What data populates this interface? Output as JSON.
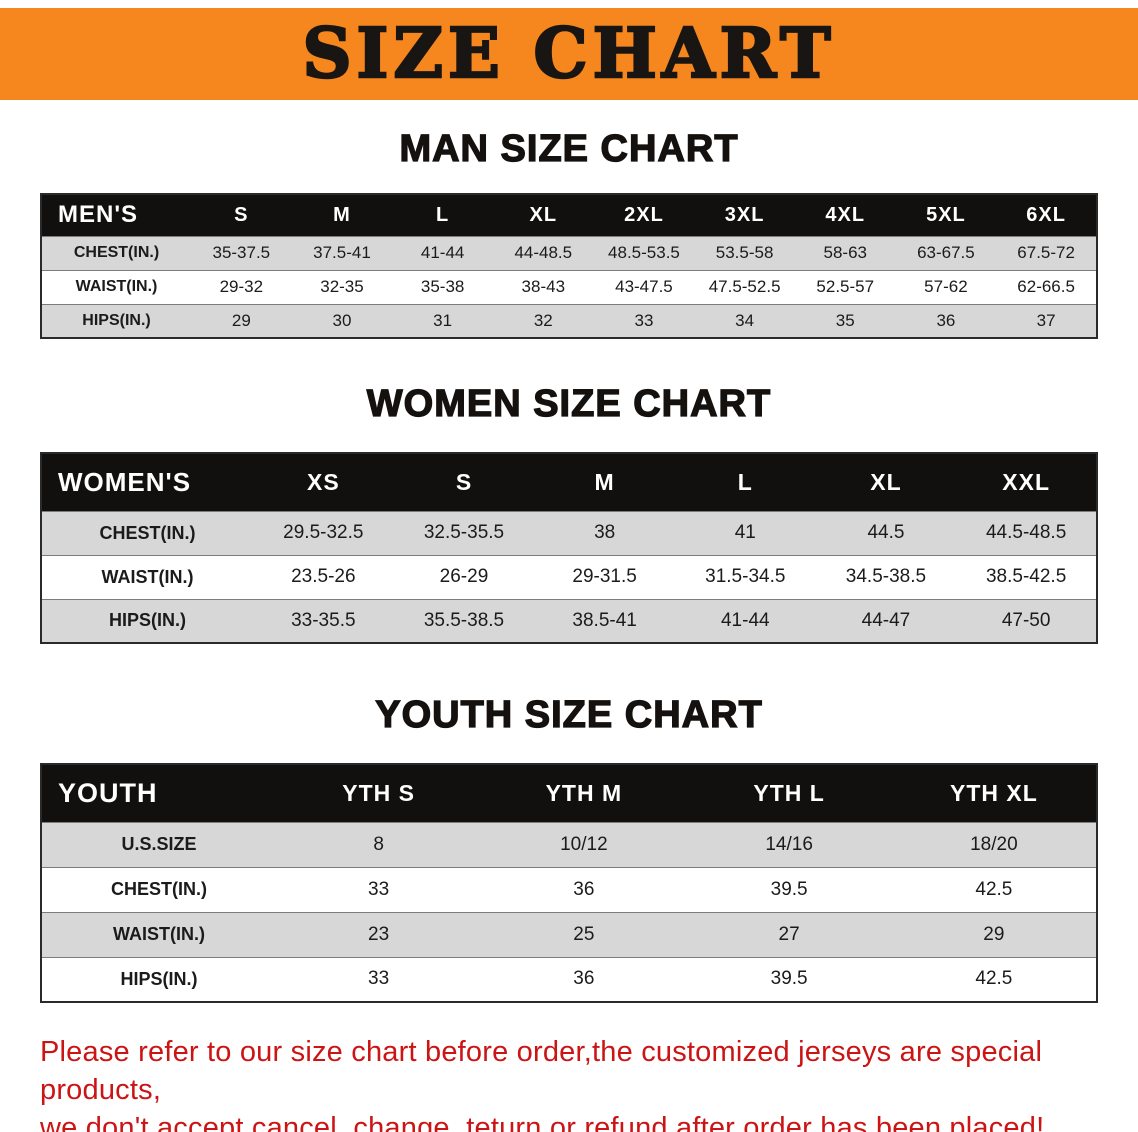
{
  "banner": {
    "title": "SIZE CHART"
  },
  "colors": {
    "banner_bg": "#F6871F",
    "table_header_bg": "#12100E",
    "row_stripe": "#D7D7D7",
    "notice_text": "#CC1414"
  },
  "sections": [
    {
      "id": "men",
      "heading": "MAN SIZE CHART",
      "table": {
        "corner": "MEN'S",
        "columns": [
          "S",
          "M",
          "L",
          "XL",
          "2XL",
          "3XL",
          "4XL",
          "5XL",
          "6XL"
        ],
        "rows": [
          {
            "label": "CHEST(IN.)",
            "values": [
              "35-37.5",
              "37.5-41",
              "41-44",
              "44-48.5",
              "48.5-53.5",
              "53.5-58",
              "58-63",
              "63-67.5",
              "67.5-72"
            ]
          },
          {
            "label": "WAIST(IN.)",
            "values": [
              "29-32",
              "32-35",
              "35-38",
              "38-43",
              "43-47.5",
              "47.5-52.5",
              "52.5-57",
              "57-62",
              "62-66.5"
            ]
          },
          {
            "label": "HIPS(IN.)",
            "values": [
              "29",
              "30",
              "31",
              "32",
              "33",
              "34",
              "35",
              "36",
              "37"
            ]
          }
        ]
      }
    },
    {
      "id": "women",
      "heading": "WOMEN SIZE CHART",
      "table": {
        "corner": "WOMEN'S",
        "columns": [
          "XS",
          "S",
          "M",
          "L",
          "XL",
          "XXL"
        ],
        "rows": [
          {
            "label": "CHEST(IN.)",
            "values": [
              "29.5-32.5",
              "32.5-35.5",
              "38",
              "41",
              "44.5",
              "44.5-48.5"
            ]
          },
          {
            "label": "WAIST(IN.)",
            "values": [
              "23.5-26",
              "26-29",
              "29-31.5",
              "31.5-34.5",
              "34.5-38.5",
              "38.5-42.5"
            ]
          },
          {
            "label": "HIPS(IN.)",
            "values": [
              "33-35.5",
              "35.5-38.5",
              "38.5-41",
              "41-44",
              "44-47",
              "47-50"
            ]
          }
        ]
      }
    },
    {
      "id": "youth",
      "heading": "YOUTH SIZE CHART",
      "table": {
        "corner": "YOUTH",
        "columns": [
          "YTH S",
          "YTH M",
          "YTH L",
          "YTH XL"
        ],
        "rows": [
          {
            "label": "U.S.SIZE",
            "values": [
              "8",
              "10/12",
              "14/16",
              "18/20"
            ]
          },
          {
            "label": "CHEST(IN.)",
            "values": [
              "33",
              "36",
              "39.5",
              "42.5"
            ]
          },
          {
            "label": "WAIST(IN.)",
            "values": [
              "23",
              "25",
              "27",
              "29"
            ]
          },
          {
            "label": "HIPS(IN.)",
            "values": [
              "33",
              "36",
              "39.5",
              "42.5"
            ]
          }
        ]
      }
    }
  ],
  "footer": {
    "line1": "Please refer to our size chart before order,the customized jerseys are special products,",
    "line2": "we don't accept cancel, change, teturn or refund after order has been placed!"
  }
}
